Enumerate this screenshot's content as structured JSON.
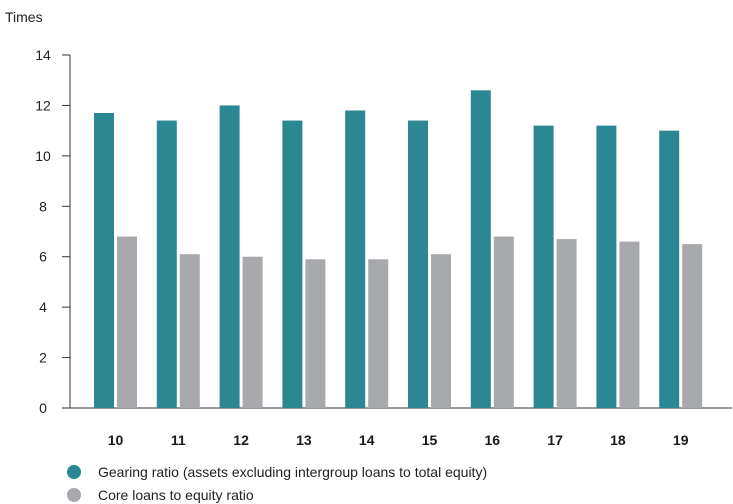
{
  "chart_data": {
    "type": "bar",
    "ylabel": "Times",
    "ylim": [
      0,
      14
    ],
    "yticks": [
      "0",
      "2",
      "4",
      "6",
      "8",
      "10",
      "12",
      "14"
    ],
    "categories": [
      "10",
      "11",
      "12",
      "13",
      "14",
      "15",
      "16",
      "17",
      "18",
      "19"
    ],
    "grid": false,
    "legend_position": "bottom-left",
    "series": [
      {
        "name": "Gearing ratio (assets excluding intergroup loans to total equity)",
        "color": "#2b8893",
        "values": [
          11.7,
          11.4,
          12.0,
          11.4,
          11.8,
          11.4,
          12.6,
          11.2,
          11.2,
          11.0
        ]
      },
      {
        "name": "Core loans to equity ratio",
        "color": "#a8a9ac",
        "values": [
          6.8,
          6.1,
          6.0,
          5.9,
          5.9,
          6.1,
          6.8,
          6.7,
          6.6,
          6.5
        ]
      }
    ]
  }
}
